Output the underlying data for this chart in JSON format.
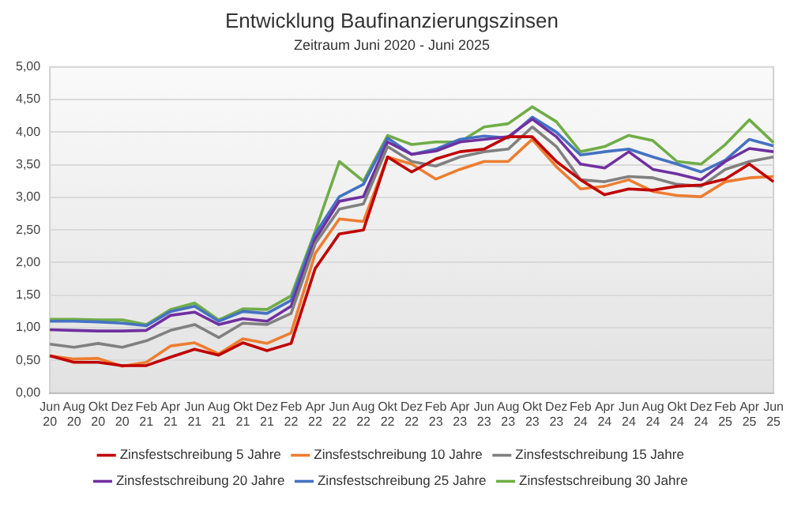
{
  "chart_data": {
    "type": "line",
    "title": "Entwicklung Baufinanzierungszinsen",
    "subtitle": "Zeitraum Juni 2020 - Juni 2025",
    "categories": [
      "Jun 20",
      "Aug 20",
      "Okt 20",
      "Dez 20",
      "Feb 21",
      "Apr 21",
      "Jun 21",
      "Aug 21",
      "Okt 21",
      "Dez 21",
      "Feb 22",
      "Apr 22",
      "Jun 22",
      "Aug 22",
      "Okt 22",
      "Dez 22",
      "Feb 23",
      "Apr 23",
      "Jun 23",
      "Aug 23",
      "Okt 23",
      "Dez 23",
      "Feb 24",
      "Apr 24",
      "Jun 24",
      "Aug 24",
      "Okt 24",
      "Dez 24",
      "Feb 25",
      "Apr 25",
      "Jun 25"
    ],
    "series": [
      {
        "name": "Zinsfestschreibung 5 Jahre",
        "color": "#c00000",
        "values": [
          0.57,
          0.47,
          0.47,
          0.42,
          0.42,
          0.55,
          0.67,
          0.58,
          0.77,
          0.65,
          0.76,
          1.91,
          2.44,
          2.5,
          3.62,
          3.39,
          3.59,
          3.7,
          3.74,
          3.93,
          3.93,
          3.55,
          3.27,
          3.04,
          3.13,
          3.11,
          3.17,
          3.19,
          3.28,
          3.51,
          3.24
        ]
      },
      {
        "name": "Zinsfestschreibung 10 Jahre",
        "color": "#ed7d31",
        "values": [
          0.57,
          0.52,
          0.53,
          0.41,
          0.47,
          0.72,
          0.77,
          0.6,
          0.83,
          0.76,
          0.92,
          2.14,
          2.67,
          2.63,
          3.62,
          3.51,
          3.28,
          3.43,
          3.55,
          3.55,
          3.89,
          3.47,
          3.13,
          3.17,
          3.27,
          3.09,
          3.03,
          3.01,
          3.24,
          3.3,
          3.32
        ]
      },
      {
        "name": "Zinsfestschreibung 15 Jahre",
        "color": "#808080",
        "values": [
          0.75,
          0.7,
          0.76,
          0.7,
          0.8,
          0.96,
          1.05,
          0.85,
          1.07,
          1.05,
          1.22,
          2.29,
          2.82,
          2.9,
          3.78,
          3.55,
          3.48,
          3.62,
          3.7,
          3.74,
          4.08,
          3.78,
          3.27,
          3.24,
          3.32,
          3.3,
          3.2,
          3.17,
          3.43,
          3.55,
          3.62
        ]
      },
      {
        "name": "Zinsfestschreibung 20 Jahre",
        "color": "#7030a0",
        "values": [
          0.97,
          0.96,
          0.95,
          0.95,
          0.96,
          1.19,
          1.24,
          1.05,
          1.14,
          1.1,
          1.33,
          2.36,
          2.94,
          3.01,
          3.85,
          3.66,
          3.71,
          3.85,
          3.89,
          3.93,
          4.2,
          3.93,
          3.51,
          3.45,
          3.7,
          3.43,
          3.36,
          3.27,
          3.55,
          3.75,
          3.7
        ]
      },
      {
        "name": "Zinsfestschreibung 25 Jahre",
        "color": "#4472c4",
        "values": [
          1.1,
          1.1,
          1.09,
          1.07,
          1.03,
          1.25,
          1.33,
          1.1,
          1.25,
          1.22,
          1.42,
          2.44,
          3.01,
          3.2,
          3.91,
          3.66,
          3.74,
          3.89,
          3.94,
          3.91,
          4.23,
          4,
          3.65,
          3.7,
          3.74,
          3.62,
          3.51,
          3.39,
          3.57,
          3.89,
          3.79
        ]
      },
      {
        "name": "Zinsfestschreibung 30 Jahre",
        "color": "#70ad47",
        "values": [
          1.13,
          1.13,
          1.12,
          1.12,
          1.05,
          1.28,
          1.38,
          1.12,
          1.29,
          1.28,
          1.49,
          2.48,
          3.55,
          3.25,
          3.95,
          3.81,
          3.85,
          3.85,
          4.08,
          4.13,
          4.39,
          4.16,
          3.7,
          3.78,
          3.95,
          3.87,
          3.55,
          3.51,
          3.81,
          4.19,
          3.84
        ]
      }
    ],
    "ylim": [
      0,
      5
    ],
    "yticks": [
      {
        "value": 0,
        "label": "0,00"
      },
      {
        "value": 0.5,
        "label": "0,50"
      },
      {
        "value": 1,
        "label": "1,00"
      },
      {
        "value": 1.5,
        "label": "1,50"
      },
      {
        "value": 2,
        "label": "2,00"
      },
      {
        "value": 2.5,
        "label": "2,50"
      },
      {
        "value": 3,
        "label": "3,00"
      },
      {
        "value": 3.5,
        "label": "3,50"
      },
      {
        "value": 4,
        "label": "4,00"
      },
      {
        "value": 4.5,
        "label": "4,50"
      },
      {
        "value": 5,
        "label": "5,00"
      }
    ],
    "grid": "y",
    "legend": "bottom",
    "marker": "none",
    "line_style": "solid"
  }
}
